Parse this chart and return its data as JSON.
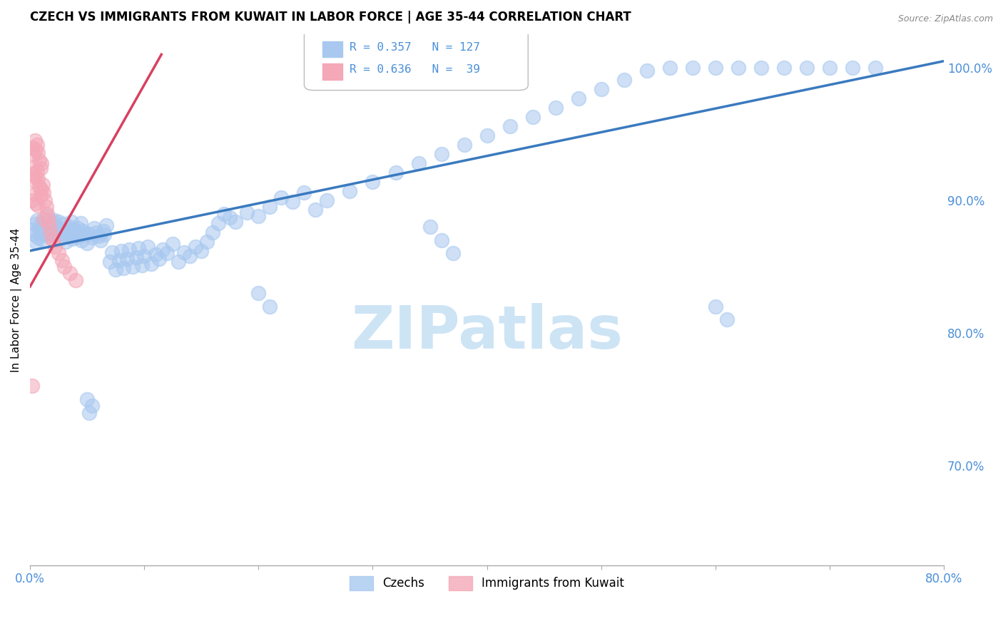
{
  "title": "CZECH VS IMMIGRANTS FROM KUWAIT IN LABOR FORCE | AGE 35-44 CORRELATION CHART",
  "source": "Source: ZipAtlas.com",
  "ylabel": "In Labor Force | Age 35-44",
  "xlim": [
    0.0,
    0.8
  ],
  "ylim": [
    0.625,
    1.025
  ],
  "yticks": [
    0.7,
    0.8,
    0.9,
    1.0
  ],
  "ytick_labels": [
    "70.0%",
    "80.0%",
    "90.0%",
    "100.0%"
  ],
  "xticks": [
    0.0,
    0.1,
    0.2,
    0.3,
    0.4,
    0.5,
    0.6,
    0.7,
    0.8
  ],
  "xtick_labels": [
    "0.0%",
    "",
    "",
    "",
    "",
    "",
    "",
    "",
    "80.0%"
  ],
  "blue_R": 0.357,
  "blue_N": 127,
  "pink_R": 0.636,
  "pink_N": 39,
  "blue_color": "#a8c8f0",
  "pink_color": "#f4a8b8",
  "trend_blue": "#3a7abf",
  "trend_pink": "#d84060",
  "watermark": "ZIPatlas",
  "blue_scatter_x": [
    0.002,
    0.003,
    0.004,
    0.005,
    0.006,
    0.007,
    0.008,
    0.009,
    0.01,
    0.01,
    0.012,
    0.013,
    0.014,
    0.015,
    0.016,
    0.017,
    0.018,
    0.019,
    0.02,
    0.021,
    0.022,
    0.023,
    0.024,
    0.025,
    0.026,
    0.027,
    0.028,
    0.03,
    0.031,
    0.032,
    0.033,
    0.034,
    0.035,
    0.036,
    0.037,
    0.038,
    0.04,
    0.041,
    0.042,
    0.043,
    0.044,
    0.045,
    0.046,
    0.048,
    0.05,
    0.052,
    0.054,
    0.056,
    0.058,
    0.06,
    0.062,
    0.064,
    0.065,
    0.067,
    0.07,
    0.072,
    0.075,
    0.078,
    0.08,
    0.082,
    0.085,
    0.087,
    0.09,
    0.093,
    0.095,
    0.098,
    0.1,
    0.103,
    0.106,
    0.11,
    0.113,
    0.116,
    0.12,
    0.125,
    0.13,
    0.135,
    0.14,
    0.145,
    0.15,
    0.155,
    0.16,
    0.165,
    0.17,
    0.175,
    0.18,
    0.19,
    0.2,
    0.21,
    0.22,
    0.23,
    0.24,
    0.25,
    0.26,
    0.28,
    0.3,
    0.32,
    0.34,
    0.36,
    0.38,
    0.4,
    0.42,
    0.44,
    0.46,
    0.48,
    0.5,
    0.52,
    0.54,
    0.56,
    0.58,
    0.6,
    0.62,
    0.64,
    0.66,
    0.68,
    0.7,
    0.72,
    0.74,
    0.05,
    0.052,
    0.054,
    0.2,
    0.21,
    0.35,
    0.36,
    0.37,
    0.6,
    0.61
  ],
  "blue_scatter_y": [
    0.878,
    0.875,
    0.882,
    0.869,
    0.885,
    0.872,
    0.879,
    0.876,
    0.883,
    0.871,
    0.874,
    0.88,
    0.877,
    0.888,
    0.873,
    0.881,
    0.876,
    0.884,
    0.878,
    0.885,
    0.874,
    0.88,
    0.877,
    0.884,
    0.871,
    0.878,
    0.875,
    0.882,
    0.869,
    0.876,
    0.873,
    0.88,
    0.877,
    0.884,
    0.871,
    0.878,
    0.875,
    0.872,
    0.879,
    0.876,
    0.883,
    0.87,
    0.877,
    0.874,
    0.868,
    0.875,
    0.872,
    0.879,
    0.876,
    0.873,
    0.87,
    0.877,
    0.874,
    0.881,
    0.854,
    0.861,
    0.848,
    0.855,
    0.862,
    0.849,
    0.856,
    0.863,
    0.85,
    0.857,
    0.864,
    0.851,
    0.858,
    0.865,
    0.852,
    0.859,
    0.856,
    0.863,
    0.86,
    0.867,
    0.854,
    0.861,
    0.858,
    0.865,
    0.862,
    0.869,
    0.876,
    0.883,
    0.89,
    0.887,
    0.884,
    0.891,
    0.888,
    0.895,
    0.902,
    0.899,
    0.906,
    0.893,
    0.9,
    0.907,
    0.914,
    0.921,
    0.928,
    0.935,
    0.942,
    0.949,
    0.956,
    0.963,
    0.97,
    0.977,
    0.984,
    0.991,
    0.998,
    1.0,
    1.0,
    1.0,
    1.0,
    1.0,
    1.0,
    1.0,
    1.0,
    1.0,
    1.0,
    0.75,
    0.74,
    0.745,
    0.83,
    0.82,
    0.88,
    0.87,
    0.86,
    0.82,
    0.81
  ],
  "pink_scatter_x": [
    0.002,
    0.002,
    0.002,
    0.003,
    0.003,
    0.004,
    0.004,
    0.004,
    0.005,
    0.005,
    0.005,
    0.006,
    0.006,
    0.007,
    0.007,
    0.007,
    0.008,
    0.008,
    0.009,
    0.009,
    0.01,
    0.01,
    0.011,
    0.012,
    0.012,
    0.013,
    0.014,
    0.015,
    0.016,
    0.017,
    0.018,
    0.02,
    0.022,
    0.025,
    0.028,
    0.03,
    0.002,
    0.035,
    0.04
  ],
  "pink_scatter_y": [
    0.94,
    0.92,
    0.9,
    0.935,
    0.915,
    0.945,
    0.925,
    0.905,
    0.938,
    0.918,
    0.898,
    0.942,
    0.922,
    0.936,
    0.916,
    0.896,
    0.93,
    0.91,
    0.924,
    0.904,
    0.928,
    0.908,
    0.912,
    0.906,
    0.886,
    0.9,
    0.895,
    0.89,
    0.885,
    0.88,
    0.875,
    0.87,
    0.865,
    0.86,
    0.855,
    0.85,
    0.76,
    0.845,
    0.84
  ],
  "blue_trendline_x": [
    0.0,
    0.8
  ],
  "blue_trendline_y": [
    0.862,
    1.005
  ],
  "pink_trendline_x": [
    0.0,
    0.115
  ],
  "pink_trendline_y": [
    0.835,
    1.01
  ],
  "axis_color": "#4a90d9",
  "grid_color": "#cccccc",
  "watermark_color": "#cde4f5",
  "watermark_fontsize": 60,
  "title_fontsize": 12
}
